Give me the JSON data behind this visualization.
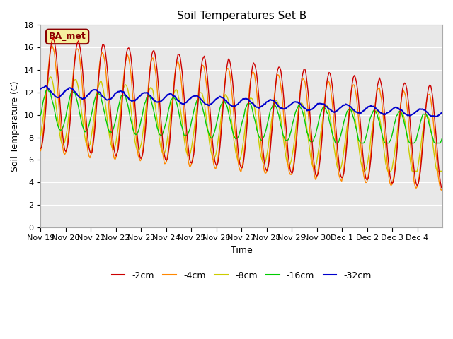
{
  "title": "Soil Temperatures Set B",
  "xlabel": "Time",
  "ylabel": "Soil Temperature (C)",
  "ylim": [
    0,
    18
  ],
  "yticks": [
    0,
    2,
    4,
    6,
    8,
    10,
    12,
    14,
    16,
    18
  ],
  "xtick_labels": [
    "Nov 19",
    "Nov 20",
    "Nov 21",
    "Nov 22",
    "Nov 23",
    "Nov 24",
    "Nov 25",
    "Nov 26",
    "Nov 27",
    "Nov 28",
    "Nov 29",
    "Nov 30",
    "Dec 1",
    "Dec 2",
    "Dec 3",
    "Dec 4"
  ],
  "legend_label": "BA_met",
  "legend_box_color": "#f5f0a0",
  "legend_box_border": "#8B0000",
  "line_colors": {
    "-2cm": "#cc0000",
    "-4cm": "#ff8800",
    "-8cm": "#cccc00",
    "-16cm": "#00cc00",
    "-32cm": "#0000cc"
  },
  "background_color": "#e8e8e8",
  "grid_color": "#ffffff",
  "n_days": 16,
  "n_points": 384,
  "seed": 42
}
